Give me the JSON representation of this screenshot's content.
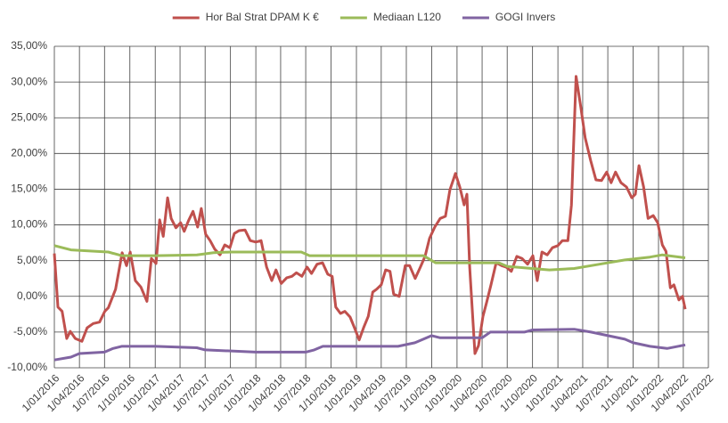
{
  "chart_data": {
    "type": "line",
    "ylim": [
      -10,
      35
    ],
    "yticks": [
      {
        "value": -10,
        "label": "-10,00%"
      },
      {
        "value": -5,
        "label": "-5,00%"
      },
      {
        "value": 0,
        "label": "0,00%"
      },
      {
        "value": 5,
        "label": "5,00%"
      },
      {
        "value": 10,
        "label": "10,00%"
      },
      {
        "value": 15,
        "label": "15,00%"
      },
      {
        "value": 20,
        "label": "20,00%"
      },
      {
        "value": 25,
        "label": "25,00%"
      },
      {
        "value": 30,
        "label": "30,00%"
      },
      {
        "value": 35,
        "label": "35,00%"
      }
    ],
    "xlim": [
      "2016-01-01",
      "2022-07-01"
    ],
    "xticks": [
      {
        "value": "2016-01-01",
        "label": "1/01/2016"
      },
      {
        "value": "2016-04-01",
        "label": "1/04/2016"
      },
      {
        "value": "2016-07-01",
        "label": "1/07/2016"
      },
      {
        "value": "2016-10-01",
        "label": "1/10/2016"
      },
      {
        "value": "2017-01-01",
        "label": "1/01/2017"
      },
      {
        "value": "2017-04-01",
        "label": "1/04/2017"
      },
      {
        "value": "2017-07-01",
        "label": "1/07/2017"
      },
      {
        "value": "2017-10-01",
        "label": "1/10/2017"
      },
      {
        "value": "2018-01-01",
        "label": "1/01/2018"
      },
      {
        "value": "2018-04-01",
        "label": "1/04/2018"
      },
      {
        "value": "2018-07-01",
        "label": "1/07/2018"
      },
      {
        "value": "2018-10-01",
        "label": "1/10/2018"
      },
      {
        "value": "2019-01-01",
        "label": "1/01/2019"
      },
      {
        "value": "2019-04-01",
        "label": "1/04/2019"
      },
      {
        "value": "2019-07-01",
        "label": "1/07/2019"
      },
      {
        "value": "2019-10-01",
        "label": "1/10/2019"
      },
      {
        "value": "2020-01-01",
        "label": "1/01/2020"
      },
      {
        "value": "2020-04-01",
        "label": "1/04/2020"
      },
      {
        "value": "2020-07-01",
        "label": "1/07/2020"
      },
      {
        "value": "2020-10-01",
        "label": "1/10/2020"
      },
      {
        "value": "2021-01-01",
        "label": "1/01/2021"
      },
      {
        "value": "2021-04-01",
        "label": "1/04/2021"
      },
      {
        "value": "2021-07-01",
        "label": "1/07/2021"
      },
      {
        "value": "2021-10-01",
        "label": "1/10/2021"
      },
      {
        "value": "2022-01-01",
        "label": "1/01/2022"
      },
      {
        "value": "2022-04-01",
        "label": "1/04/2022"
      },
      {
        "value": "2022-07-01",
        "label": "1/07/2022"
      }
    ],
    "grid": true,
    "legend": "top",
    "series": [
      {
        "name": "Hor Bal Strat DPAM K €",
        "color": "#c0504d",
        "x": [
          "2016-01-01",
          "2016-01-14",
          "2016-01-29",
          "2016-02-15",
          "2016-02-28",
          "2016-03-17",
          "2016-04-10",
          "2016-04-29",
          "2016-05-21",
          "2016-06-13",
          "2016-07-02",
          "2016-07-15",
          "2016-08-10",
          "2016-09-03",
          "2016-09-19",
          "2016-10-02",
          "2016-10-21",
          "2016-11-10",
          "2016-12-02",
          "2016-12-18",
          "2017-01-04",
          "2017-01-17",
          "2017-01-30",
          "2017-02-15",
          "2017-02-28",
          "2017-03-17",
          "2017-04-03",
          "2017-04-16",
          "2017-05-02",
          "2017-05-18",
          "2017-06-04",
          "2017-06-17",
          "2017-07-03",
          "2017-07-19",
          "2017-08-05",
          "2017-08-24",
          "2017-09-10",
          "2017-09-29",
          "2017-10-15",
          "2017-11-01",
          "2017-11-23",
          "2017-12-12",
          "2018-01-01",
          "2018-01-20",
          "2018-02-09",
          "2018-02-28",
          "2018-03-15",
          "2018-04-03",
          "2018-04-23",
          "2018-05-12",
          "2018-05-28",
          "2018-06-17",
          "2018-07-06",
          "2018-07-22",
          "2018-08-11",
          "2018-08-31",
          "2018-09-19",
          "2018-10-05",
          "2018-10-18",
          "2018-11-04",
          "2018-11-20",
          "2018-12-09",
          "2018-12-25",
          "2019-01-11",
          "2019-01-27",
          "2019-02-13",
          "2019-03-01",
          "2019-03-15",
          "2019-04-01",
          "2019-04-17",
          "2019-05-03",
          "2019-05-16",
          "2019-06-05",
          "2019-06-27",
          "2019-07-13",
          "2019-08-02",
          "2019-08-21",
          "2019-09-07",
          "2019-09-23",
          "2019-10-12",
          "2019-11-01",
          "2019-11-20",
          "2019-12-06",
          "2019-12-26",
          "2020-01-11",
          "2020-01-27",
          "2020-02-06",
          "2020-02-16",
          "2020-03-06",
          "2020-03-19",
          "2020-04-04",
          "2020-04-17",
          "2020-05-03",
          "2020-05-22",
          "2020-06-11",
          "2020-06-27",
          "2020-07-16",
          "2020-08-05",
          "2020-08-24",
          "2020-09-13",
          "2020-10-02",
          "2020-10-18",
          "2020-11-04",
          "2020-11-23",
          "2020-12-12",
          "2021-01-01",
          "2021-01-17",
          "2021-02-06",
          "2021-02-19",
          "2021-03-08",
          "2021-03-25",
          "2021-04-10",
          "2021-04-30",
          "2021-05-19",
          "2021-06-08",
          "2021-06-27",
          "2021-07-13",
          "2021-07-29",
          "2021-08-18",
          "2021-09-07",
          "2021-09-26",
          "2021-10-09",
          "2021-10-22",
          "2021-11-08",
          "2021-11-24",
          "2021-12-13",
          "2021-12-29",
          "2022-01-15",
          "2022-01-28",
          "2022-02-13",
          "2022-02-26",
          "2022-03-16",
          "2022-03-29",
          "2022-04-08"
        ],
        "values": [
          6.0,
          -1.5,
          -2.1,
          -5.9,
          -4.9,
          -5.9,
          -6.3,
          -4.4,
          -3.8,
          -3.6,
          -2.1,
          -1.6,
          1.0,
          6.1,
          4.3,
          6.2,
          2.2,
          1.3,
          -0.7,
          5.3,
          4.6,
          10.7,
          8.4,
          13.8,
          10.9,
          9.6,
          10.3,
          9.1,
          10.6,
          11.9,
          9.7,
          12.3,
          8.7,
          7.8,
          6.6,
          5.8,
          7.2,
          6.8,
          8.8,
          9.2,
          9.3,
          7.8,
          7.6,
          7.8,
          4.1,
          2.2,
          3.7,
          1.8,
          2.6,
          2.8,
          3.3,
          2.8,
          4.1,
          3.2,
          4.5,
          4.7,
          3.1,
          2.8,
          -1.5,
          -2.4,
          -2.1,
          -2.9,
          -4.4,
          -6.1,
          -4.4,
          -2.8,
          0.6,
          1.0,
          1.6,
          3.7,
          3.5,
          0.3,
          0.0,
          4.3,
          4.3,
          2.5,
          4.1,
          5.6,
          8.1,
          9.7,
          10.9,
          11.2,
          14.9,
          17.2,
          15.3,
          12.8,
          14.3,
          4.1,
          -8.0,
          -6.9,
          -2.8,
          -0.9,
          1.6,
          4.7,
          4.3,
          4.1,
          3.5,
          5.6,
          5.3,
          4.5,
          5.7,
          2.2,
          6.2,
          5.8,
          6.8,
          7.1,
          7.8,
          7.8,
          12.8,
          30.8,
          26.5,
          22.2,
          19.0,
          16.3,
          16.2,
          17.4,
          15.9,
          17.4,
          15.9,
          15.3,
          13.8,
          14.3,
          18.3,
          15.3,
          10.9,
          11.3,
          10.3,
          7.2,
          6.3,
          1.2,
          1.6,
          -0.5,
          0.0,
          -1.8
        ]
      },
      {
        "name": "Mediaan L120",
        "color": "#9bbb59",
        "x": [
          "2016-01-01",
          "2016-03-01",
          "2016-06-01",
          "2016-07-15",
          "2016-09-01",
          "2017-01-01",
          "2017-06-01",
          "2017-08-01",
          "2017-10-01",
          "2018-06-15",
          "2018-07-15",
          "2019-09-01",
          "2019-10-15",
          "2020-06-01",
          "2020-07-01",
          "2020-12-01",
          "2021-03-01",
          "2021-06-01",
          "2021-09-01",
          "2021-12-01",
          "2022-01-15",
          "2022-04-08"
        ],
        "values": [
          7.1,
          6.5,
          6.3,
          6.2,
          5.7,
          5.7,
          5.8,
          6.1,
          6.2,
          6.2,
          5.7,
          5.7,
          4.7,
          4.7,
          4.2,
          3.7,
          3.9,
          4.5,
          5.1,
          5.5,
          5.8,
          5.4
        ]
      },
      {
        "name": "GOGI Invers",
        "color": "#8064a2",
        "x": [
          "2016-01-01",
          "2016-03-01",
          "2016-04-01",
          "2016-07-01",
          "2016-08-01",
          "2016-09-01",
          "2017-01-01",
          "2017-06-01",
          "2017-07-01",
          "2017-09-01",
          "2018-01-01",
          "2018-07-01",
          "2018-08-01",
          "2018-09-01",
          "2019-06-01",
          "2019-08-01",
          "2019-10-01",
          "2019-11-01",
          "2020-04-01",
          "2020-05-01",
          "2020-09-01",
          "2020-10-01",
          "2021-03-01",
          "2021-05-01",
          "2021-09-01",
          "2021-10-01",
          "2021-12-01",
          "2022-02-01",
          "2022-04-08"
        ],
        "values": [
          -8.9,
          -8.5,
          -8.0,
          -7.8,
          -7.3,
          -7.0,
          -7.0,
          -7.2,
          -7.5,
          -7.6,
          -7.8,
          -7.8,
          -7.5,
          -7.0,
          -7.0,
          -6.5,
          -5.5,
          -5.8,
          -5.8,
          -5.0,
          -5.0,
          -4.7,
          -4.6,
          -5.0,
          -6.0,
          -6.5,
          -7.0,
          -7.3,
          -6.8
        ]
      }
    ]
  }
}
